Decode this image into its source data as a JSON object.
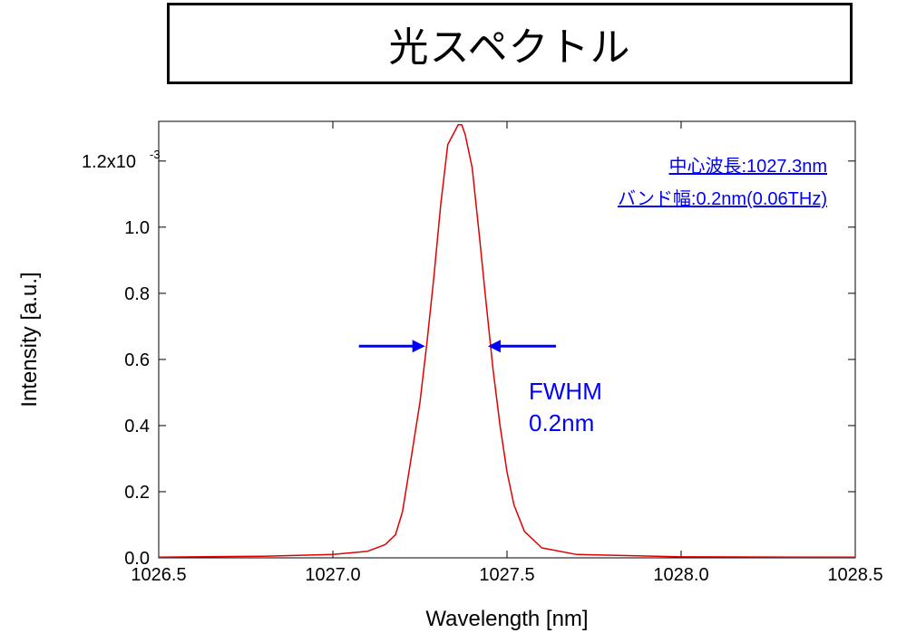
{
  "title": "光スペクトル",
  "chart_data": {
    "type": "line",
    "xlabel": "Wavelength [nm]",
    "ylabel": "Intensity [a.u.]",
    "xlim": [
      1026.5,
      1028.5
    ],
    "ylim": [
      0,
      0.00132
    ],
    "x_ticks": [
      1026.5,
      1027.0,
      1027.5,
      1028.0,
      1028.5
    ],
    "x_tick_labels": [
      "1026.5",
      "1027.0",
      "1027.5",
      "1028.0",
      "1028.5"
    ],
    "y_ticks": [
      0,
      0.0002,
      0.0004,
      0.0006,
      0.0008,
      0.001,
      0.0012
    ],
    "y_tick_labels": [
      "0.0",
      "0.2",
      "0.4",
      "0.6",
      "0.8",
      "1.0",
      "1.2x10"
    ],
    "y_exponent_label": "-3",
    "grid": false,
    "line_color": "#e00000",
    "series": [
      {
        "x": [
          1026.5,
          1026.8,
          1027.0,
          1027.1,
          1027.15,
          1027.18,
          1027.2,
          1027.22,
          1027.25,
          1027.27,
          1027.29,
          1027.31,
          1027.33,
          1027.35,
          1027.36,
          1027.37,
          1027.38,
          1027.4,
          1027.42,
          1027.44,
          1027.46,
          1027.48,
          1027.5,
          1027.52,
          1027.55,
          1027.6,
          1027.7,
          1028.0,
          1028.5
        ],
        "y": [
          2e-06,
          5e-06,
          1e-05,
          2e-05,
          4e-05,
          7e-05,
          0.00014,
          0.00027,
          0.00047,
          0.00065,
          0.00085,
          0.00107,
          0.00125,
          0.00129,
          0.00131,
          0.00131,
          0.00128,
          0.00118,
          0.00098,
          0.00077,
          0.00057,
          0.0004,
          0.00026,
          0.00016,
          8e-05,
          3e-05,
          1e-05,
          3e-06,
          2e-06
        ]
      }
    ],
    "annotations": {
      "center_wavelength": "中心波長:1027.3nm",
      "bandwidth": "バンド幅:0.2nm(0.06THz)",
      "fwhm_line1": "FWHM",
      "fwhm_line2": "0.2nm",
      "fwhm_level": 0.00064,
      "fwhm_left_x": 1027.27,
      "fwhm_right_x": 1027.44,
      "arrow_color": "#0000ff"
    }
  }
}
